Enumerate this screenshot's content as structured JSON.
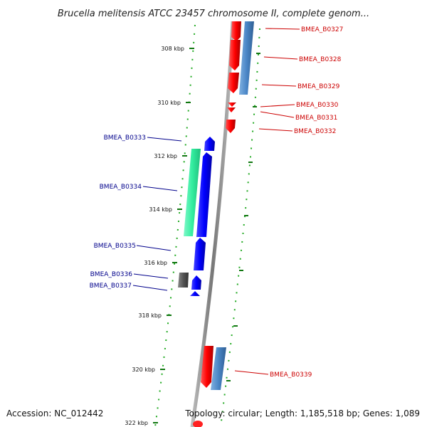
{
  "title": "Brucella melitensis ATCC 23457 chromosome II, complete genom...",
  "footer": {
    "accession": "Accession: NC_012442",
    "topology": "Topology: circular; Length: 1,185,518 bp; Genes: 1,089"
  },
  "ticks": [
    "308 kbp",
    "310 kbp",
    "312 kbp",
    "314 kbp",
    "316 kbp",
    "318 kbp",
    "320 kbp",
    "322 kbp"
  ],
  "genes_right": [
    "BMEA_B0327",
    "BMEA_B0328",
    "BMEA_B0329",
    "BMEA_B0330",
    "BMEA_B0331",
    "BMEA_B0332",
    "BMEA_B0339"
  ],
  "genes_left": [
    "BMEA_B0333",
    "BMEA_B0334",
    "BMEA_B0335",
    "BMEA_B0336",
    "BMEA_B0337"
  ],
  "colors": {
    "forward_cds": "#ff0000",
    "reverse_cds": "#0000ff",
    "forward_blast": "#4a86c6",
    "reverse_blast": "#33eea0",
    "gray_feature": "#555555",
    "backbone": "#888888",
    "tick_marks": "#22aa22",
    "label_red": "#cc0000",
    "label_blue": "#00008b"
  }
}
